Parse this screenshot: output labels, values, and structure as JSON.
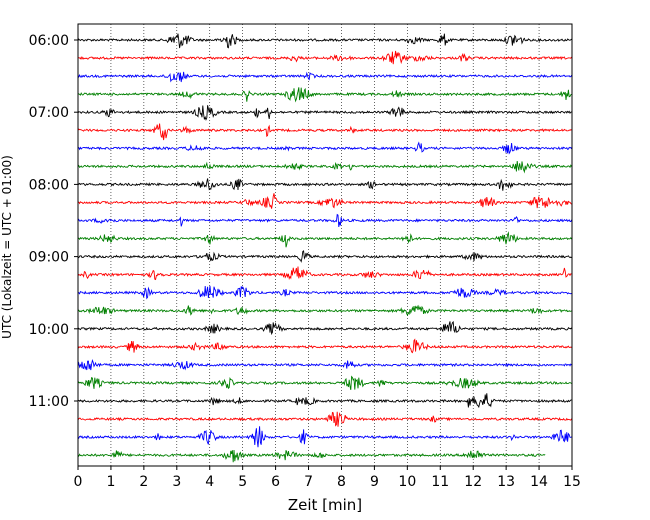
{
  "chart_data": {
    "type": "line",
    "title": "",
    "xlabel": "Zeit  [min]",
    "ylabel": "UTC (Lokalzeit = UTC + 01:00)",
    "xlim": [
      0,
      15
    ],
    "x_ticks": [
      "0",
      "1",
      "2",
      "3",
      "4",
      "5",
      "6",
      "7",
      "8",
      "9",
      "10",
      "11",
      "12",
      "13",
      "14",
      "15"
    ],
    "y_tick_labels": [
      "06:00",
      "07:00",
      "08:00",
      "09:00",
      "10:00",
      "11:00"
    ],
    "grid": "vertical dotted lines at each minute",
    "trace_interval_min": 15,
    "colors": [
      "#000000",
      "#ff0000",
      "#0000ff",
      "#008000"
    ],
    "series": [
      {
        "start": "06:00",
        "end_min": 15
      },
      {
        "start": "06:15",
        "end_min": 15
      },
      {
        "start": "06:30",
        "end_min": 15
      },
      {
        "start": "06:45",
        "end_min": 15
      },
      {
        "start": "07:00",
        "end_min": 15
      },
      {
        "start": "07:15",
        "end_min": 15
      },
      {
        "start": "07:30",
        "end_min": 15
      },
      {
        "start": "07:45",
        "end_min": 15
      },
      {
        "start": "08:00",
        "end_min": 15
      },
      {
        "start": "08:15",
        "end_min": 15
      },
      {
        "start": "08:30",
        "end_min": 15
      },
      {
        "start": "08:45",
        "end_min": 15
      },
      {
        "start": "09:00",
        "end_min": 15
      },
      {
        "start": "09:15",
        "end_min": 15
      },
      {
        "start": "09:30",
        "end_min": 15
      },
      {
        "start": "09:45",
        "end_min": 15
      },
      {
        "start": "10:00",
        "end_min": 15
      },
      {
        "start": "10:15",
        "end_min": 15
      },
      {
        "start": "10:30",
        "end_min": 15
      },
      {
        "start": "10:45",
        "end_min": 15
      },
      {
        "start": "11:00",
        "end_min": 15
      },
      {
        "start": "11:15",
        "end_min": 15
      },
      {
        "start": "11:30",
        "end_min": 15
      },
      {
        "start": "11:45",
        "end_min": 14.2
      }
    ]
  }
}
